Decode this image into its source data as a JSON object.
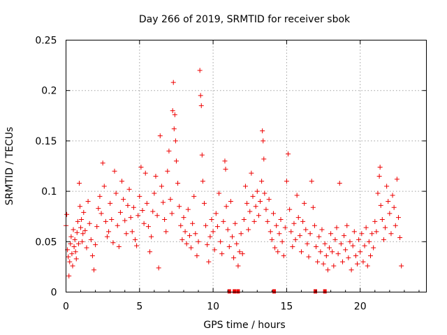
{
  "chart_data": {
    "type": "scatter",
    "title": "Day 266 of 2019, SRMTID for receiver sbok",
    "xlabel": "GPS time / hours",
    "ylabel": "SRMTID / TECUs",
    "xlim": [
      0,
      24.5
    ],
    "ylim": [
      0,
      0.25
    ],
    "x_ticks": [
      0,
      5,
      10,
      15,
      20
    ],
    "x_tick_labels": [
      "0",
      "5",
      "10",
      "15",
      "20"
    ],
    "y_ticks": [
      0,
      0.05,
      0.1,
      0.15,
      0.2,
      0.25
    ],
    "y_tick_labels": [
      "0",
      "0.05",
      "0.1",
      "0.15",
      "0.2",
      "0.25"
    ],
    "grid": true,
    "marker": "plus",
    "color": "#ee0000",
    "series": [
      {
        "name": "SRMTID",
        "points": [
          [
            0.0,
            0.066
          ],
          [
            0.05,
            0.077
          ],
          [
            0.1,
            0.042
          ],
          [
            0.15,
            0.035
          ],
          [
            0.2,
            0.016
          ],
          [
            0.25,
            0.03
          ],
          [
            0.3,
            0.048
          ],
          [
            0.35,
            0.055
          ],
          [
            0.4,
            0.038
          ],
          [
            0.45,
            0.026
          ],
          [
            0.5,
            0.062
          ],
          [
            0.55,
            0.045
          ],
          [
            0.6,
            0.052
          ],
          [
            0.65,
            0.04
          ],
          [
            0.7,
            0.033
          ],
          [
            0.75,
            0.059
          ],
          [
            0.8,
            0.07
          ],
          [
            0.85,
            0.048
          ],
          [
            0.9,
            0.108
          ],
          [
            0.95,
            0.085
          ],
          [
            1.0,
            0.064
          ],
          [
            1.05,
            0.072
          ],
          [
            1.1,
            0.05
          ],
          [
            1.15,
            0.058
          ],
          [
            1.2,
            0.079
          ],
          [
            1.3,
            0.061
          ],
          [
            1.4,
            0.044
          ],
          [
            1.5,
            0.09
          ],
          [
            1.6,
            0.068
          ],
          [
            1.7,
            0.052
          ],
          [
            1.8,
            0.036
          ],
          [
            1.9,
            0.022
          ],
          [
            2.0,
            0.047
          ],
          [
            2.1,
            0.065
          ],
          [
            2.2,
            0.083
          ],
          [
            2.3,
            0.095
          ],
          [
            2.4,
            0.078
          ],
          [
            2.5,
            0.128
          ],
          [
            2.6,
            0.105
          ],
          [
            2.7,
            0.07
          ],
          [
            2.8,
            0.055
          ],
          [
            2.9,
            0.06
          ],
          [
            3.0,
            0.088
          ],
          [
            3.1,
            0.072
          ],
          [
            3.2,
            0.049
          ],
          [
            3.3,
            0.12
          ],
          [
            3.4,
            0.098
          ],
          [
            3.5,
            0.066
          ],
          [
            3.6,
            0.045
          ],
          [
            3.7,
            0.079
          ],
          [
            3.8,
            0.11
          ],
          [
            3.9,
            0.092
          ],
          [
            4.0,
            0.071
          ],
          [
            4.1,
            0.058
          ],
          [
            4.2,
            0.086
          ],
          [
            4.3,
            0.102
          ],
          [
            4.4,
            0.074
          ],
          [
            4.5,
            0.06
          ],
          [
            4.6,
            0.084
          ],
          [
            4.7,
            0.052
          ],
          [
            4.8,
            0.046
          ],
          [
            4.9,
            0.076
          ],
          [
            5.0,
            0.095
          ],
          [
            5.1,
            0.124
          ],
          [
            5.2,
            0.081
          ],
          [
            5.3,
            0.068
          ],
          [
            5.4,
            0.118
          ],
          [
            5.5,
            0.088
          ],
          [
            5.6,
            0.065
          ],
          [
            5.7,
            0.04
          ],
          [
            5.8,
            0.055
          ],
          [
            5.9,
            0.08
          ],
          [
            6.0,
            0.098
          ],
          [
            6.1,
            0.115
          ],
          [
            6.2,
            0.076
          ],
          [
            6.3,
            0.024
          ],
          [
            6.4,
            0.155
          ],
          [
            6.5,
            0.105
          ],
          [
            6.6,
            0.089
          ],
          [
            6.7,
            0.072
          ],
          [
            6.8,
            0.06
          ],
          [
            6.9,
            0.12
          ],
          [
            7.0,
            0.14
          ],
          [
            7.1,
            0.092
          ],
          [
            7.2,
            0.078
          ],
          [
            7.25,
            0.18
          ],
          [
            7.3,
            0.208
          ],
          [
            7.35,
            0.162
          ],
          [
            7.4,
            0.176
          ],
          [
            7.45,
            0.15
          ],
          [
            7.5,
            0.13
          ],
          [
            7.6,
            0.108
          ],
          [
            7.7,
            0.085
          ],
          [
            7.8,
            0.066
          ],
          [
            7.9,
            0.052
          ],
          [
            8.0,
            0.074
          ],
          [
            8.1,
            0.06
          ],
          [
            8.2,
            0.048
          ],
          [
            8.3,
            0.082
          ],
          [
            8.4,
            0.056
          ],
          [
            8.5,
            0.044
          ],
          [
            8.6,
            0.068
          ],
          [
            8.7,
            0.095
          ],
          [
            8.8,
            0.058
          ],
          [
            8.9,
            0.036
          ],
          [
            9.0,
            0.05
          ],
          [
            9.1,
            0.22
          ],
          [
            9.15,
            0.195
          ],
          [
            9.2,
            0.185
          ],
          [
            9.25,
            0.136
          ],
          [
            9.3,
            0.11
          ],
          [
            9.4,
            0.088
          ],
          [
            9.5,
            0.066
          ],
          [
            9.6,
            0.047
          ],
          [
            9.7,
            0.03
          ],
          [
            9.8,
            0.055
          ],
          [
            9.9,
            0.072
          ],
          [
            10.0,
            0.06
          ],
          [
            10.1,
            0.042
          ],
          [
            10.2,
            0.078
          ],
          [
            10.3,
            0.065
          ],
          [
            10.4,
            0.098
          ],
          [
            10.5,
            0.05
          ],
          [
            10.6,
            0.038
          ],
          [
            10.7,
            0.07
          ],
          [
            10.8,
            0.13
          ],
          [
            10.85,
            0.122
          ],
          [
            10.9,
            0.085
          ],
          [
            11.0,
            0.062
          ],
          [
            11.1,
            0.045
          ],
          [
            11.2,
            0.09
          ],
          [
            11.3,
            0.055
          ],
          [
            11.4,
            0.034
          ],
          [
            11.5,
            0.068
          ],
          [
            11.6,
            0.048
          ],
          [
            11.7,
            0.026
          ],
          [
            11.8,
            0.04
          ],
          [
            11.9,
            0.058
          ],
          [
            12.0,
            0.038
          ],
          [
            12.1,
            0.072
          ],
          [
            12.2,
            0.105
          ],
          [
            12.3,
            0.088
          ],
          [
            12.4,
            0.062
          ],
          [
            12.5,
            0.08
          ],
          [
            12.6,
            0.118
          ],
          [
            12.7,
            0.095
          ],
          [
            12.8,
            0.07
          ],
          [
            12.9,
            0.085
          ],
          [
            13.0,
            0.1
          ],
          [
            13.1,
            0.076
          ],
          [
            13.2,
            0.09
          ],
          [
            13.3,
            0.11
          ],
          [
            13.35,
            0.16
          ],
          [
            13.4,
            0.15
          ],
          [
            13.45,
            0.132
          ],
          [
            13.5,
            0.098
          ],
          [
            13.6,
            0.082
          ],
          [
            13.7,
            0.07
          ],
          [
            13.8,
            0.092
          ],
          [
            13.9,
            0.06
          ],
          [
            14.0,
            0.052
          ],
          [
            14.1,
            0.078
          ],
          [
            14.2,
            0.044
          ],
          [
            14.3,
            0.066
          ],
          [
            14.4,
            0.04
          ],
          [
            14.5,
            0.058
          ],
          [
            14.6,
            0.072
          ],
          [
            14.7,
            0.05
          ],
          [
            14.8,
            0.036
          ],
          [
            14.9,
            0.064
          ],
          [
            15.0,
            0.11
          ],
          [
            15.1,
            0.137
          ],
          [
            15.2,
            0.082
          ],
          [
            15.3,
            0.06
          ],
          [
            15.4,
            0.045
          ],
          [
            15.5,
            0.068
          ],
          [
            15.6,
            0.052
          ],
          [
            15.7,
            0.096
          ],
          [
            15.8,
            0.074
          ],
          [
            15.9,
            0.056
          ],
          [
            16.0,
            0.04
          ],
          [
            16.1,
            0.07
          ],
          [
            16.2,
            0.088
          ],
          [
            16.3,
            0.062
          ],
          [
            16.4,
            0.048
          ],
          [
            16.5,
            0.035
          ],
          [
            16.6,
            0.058
          ],
          [
            16.7,
            0.11
          ],
          [
            16.8,
            0.084
          ],
          [
            16.9,
            0.066
          ],
          [
            17.0,
            0.045
          ],
          [
            17.1,
            0.03
          ],
          [
            17.2,
            0.055
          ],
          [
            17.3,
            0.04
          ],
          [
            17.4,
            0.062
          ],
          [
            17.5,
            0.028
          ],
          [
            17.6,
            0.048
          ],
          [
            17.7,
            0.036
          ],
          [
            17.8,
            0.022
          ],
          [
            17.9,
            0.044
          ],
          [
            18.0,
            0.058
          ],
          [
            18.1,
            0.04
          ],
          [
            18.2,
            0.026
          ],
          [
            18.3,
            0.052
          ],
          [
            18.4,
            0.064
          ],
          [
            18.5,
            0.038
          ],
          [
            18.6,
            0.108
          ],
          [
            18.7,
            0.048
          ],
          [
            18.8,
            0.03
          ],
          [
            18.9,
            0.056
          ],
          [
            19.0,
            0.042
          ],
          [
            19.1,
            0.066
          ],
          [
            19.2,
            0.034
          ],
          [
            19.3,
            0.05
          ],
          [
            19.4,
            0.022
          ],
          [
            19.5,
            0.046
          ],
          [
            19.6,
            0.06
          ],
          [
            19.7,
            0.036
          ],
          [
            19.8,
            0.028
          ],
          [
            19.9,
            0.052
          ],
          [
            20.0,
            0.04
          ],
          [
            20.1,
            0.058
          ],
          [
            20.2,
            0.03
          ],
          [
            20.3,
            0.046
          ],
          [
            20.4,
            0.064
          ],
          [
            20.5,
            0.026
          ],
          [
            20.6,
            0.05
          ],
          [
            20.7,
            0.036
          ],
          [
            20.8,
            0.058
          ],
          [
            20.9,
            0.044
          ],
          [
            21.0,
            0.07
          ],
          [
            21.1,
            0.06
          ],
          [
            21.2,
            0.098
          ],
          [
            21.3,
            0.115
          ],
          [
            21.35,
            0.124
          ],
          [
            21.4,
            0.086
          ],
          [
            21.5,
            0.072
          ],
          [
            21.6,
            0.052
          ],
          [
            21.7,
            0.064
          ],
          [
            21.8,
            0.105
          ],
          [
            21.9,
            0.09
          ],
          [
            22.0,
            0.078
          ],
          [
            22.1,
            0.058
          ],
          [
            22.2,
            0.096
          ],
          [
            22.3,
            0.084
          ],
          [
            22.4,
            0.066
          ],
          [
            22.5,
            0.112
          ],
          [
            22.6,
            0.074
          ],
          [
            22.7,
            0.054
          ],
          [
            22.8,
            0.026
          ]
        ]
      }
    ],
    "gap_markers_x": [
      11.1,
      11.45,
      11.7,
      14.15,
      16.95,
      17.6
    ]
  }
}
